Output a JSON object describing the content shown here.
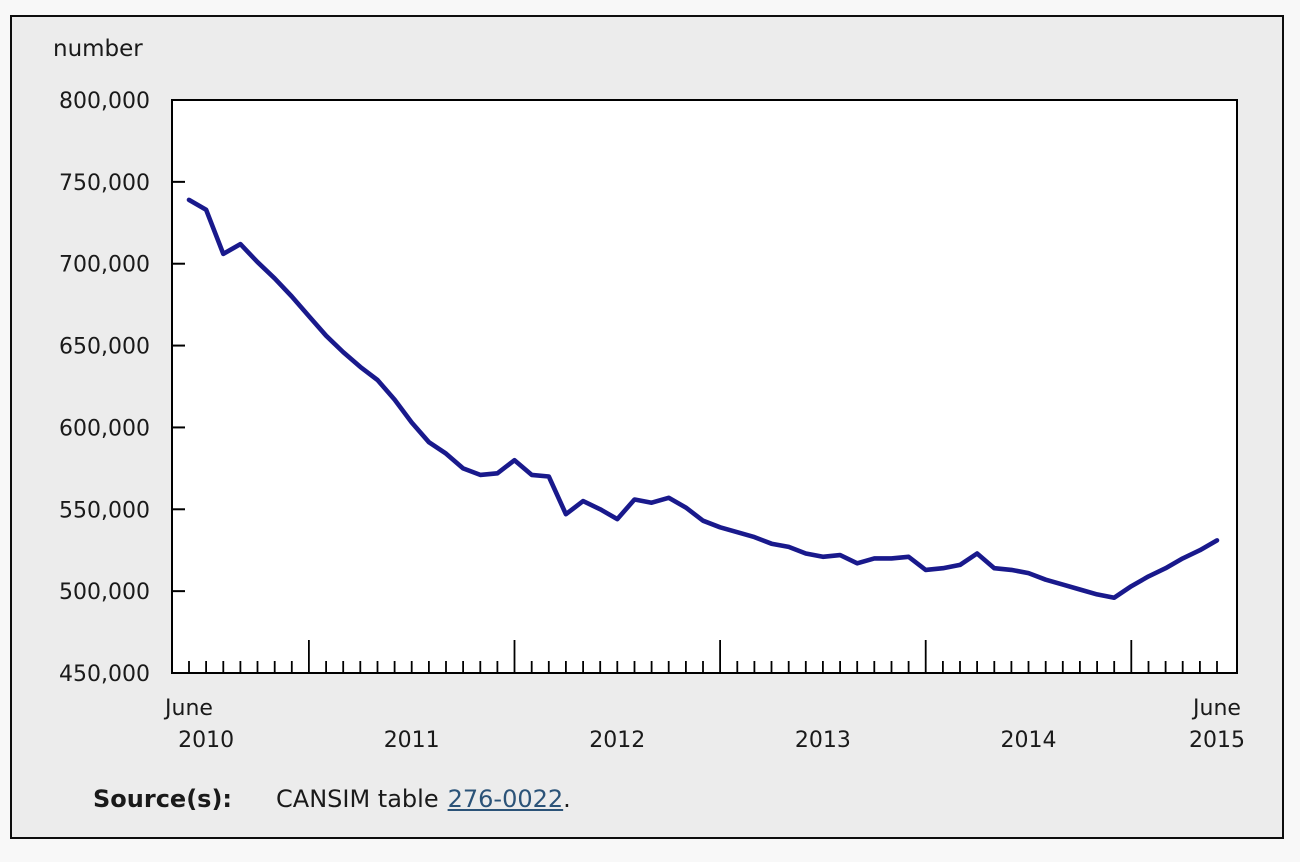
{
  "figure": {
    "background_color": "#ececec",
    "page_background": "#f8f8f8",
    "frame_color": "#000000",
    "text_color": "#1a1a1a"
  },
  "chart_data": {
    "type": "line",
    "title": "",
    "ylabel": "number",
    "xlabel": "",
    "x_frequency": "monthly",
    "x_start": "June 2010",
    "x_end": "June 2015",
    "ylim": [
      450000,
      800000
    ],
    "y_tick_step": 50000,
    "y_ticks": [
      "800,000",
      "750,000",
      "700,000",
      "650,000",
      "600,000",
      "550,000",
      "500,000",
      "450,000"
    ],
    "x_labels": [
      {
        "text": "June",
        "month_index": 0,
        "row": "top"
      },
      {
        "text": "2010",
        "month_index": 1,
        "row": "bottom"
      },
      {
        "text": "2011",
        "month_index": 13,
        "row": "bottom"
      },
      {
        "text": "2012",
        "month_index": 25,
        "row": "bottom"
      },
      {
        "text": "2013",
        "month_index": 37,
        "row": "bottom"
      },
      {
        "text": "2014",
        "month_index": 49,
        "row": "bottom"
      },
      {
        "text": "June",
        "month_index": 60,
        "row": "top"
      },
      {
        "text": "2015",
        "month_index": 60,
        "row": "bottom"
      }
    ],
    "line_color": "#19198c",
    "grid": false,
    "legend": "none",
    "series": [
      {
        "name": "number",
        "values": [
          739000,
          733000,
          706000,
          712000,
          701000,
          691000,
          680000,
          668000,
          656000,
          646000,
          637000,
          629000,
          617000,
          603000,
          591000,
          584000,
          575000,
          571000,
          572000,
          580000,
          571000,
          570000,
          547000,
          555000,
          550000,
          544000,
          556000,
          554000,
          557000,
          551000,
          543000,
          539000,
          536000,
          533000,
          529000,
          527000,
          523000,
          521000,
          522000,
          517000,
          520000,
          520000,
          521000,
          513000,
          514000,
          516000,
          523000,
          514000,
          513000,
          511000,
          507000,
          504000,
          501000,
          498000,
          496000,
          503000,
          509000,
          514000,
          520000,
          525000,
          531000
        ]
      }
    ]
  },
  "source": {
    "label": "Source(s):",
    "text": "CANSIM table",
    "link": "276-0022",
    "suffix": "."
  }
}
